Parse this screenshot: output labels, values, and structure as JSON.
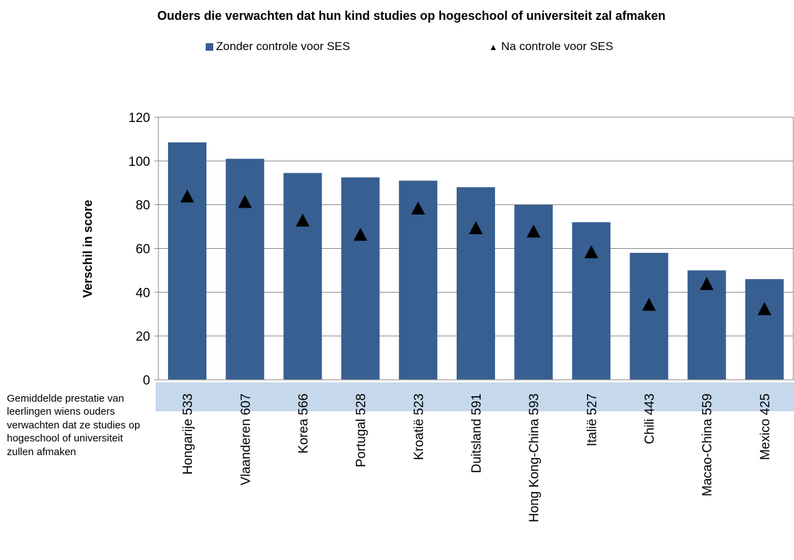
{
  "chart_data": {
    "type": "bar",
    "title": "Ouders die verwachten dat hun kind studies op hogeschool of universiteit zal afmaken",
    "ylabel": "Verschil in score",
    "xlabel": "",
    "ylim": [
      0,
      120
    ],
    "yticks": [
      0,
      20,
      40,
      60,
      80,
      100,
      120
    ],
    "grid": true,
    "legend_position": "top",
    "categories": [
      "Hongarije  533",
      "Vlaanderen  607",
      "Korea  566",
      "Portugal  528",
      "Kroatië  523",
      "Duitsland  591",
      "Hong Kong-China  593",
      "Italië  527",
      "Chili  443",
      "Macao-China  559",
      "Mexico  425"
    ],
    "series": [
      {
        "name": "Zonder controle voor SES",
        "marker": "bar",
        "color": "#375f91",
        "values": [
          108.5,
          101,
          94.5,
          92.5,
          91,
          88,
          80,
          72,
          58,
          50,
          46
        ]
      },
      {
        "name": "Na controle voor SES",
        "marker": "triangle",
        "color": "#000000",
        "values": [
          84,
          81.5,
          73,
          66.5,
          78.5,
          69.5,
          68,
          58.5,
          34.5,
          44,
          32.5
        ]
      }
    ]
  },
  "side_note": "Gemiddelde prestatie van leerlingen wiens ouders verwachten dat ze studies op hogeschool of universiteit zullen afmaken",
  "colors": {
    "bar": "#375f91",
    "band": "#c6d8eb",
    "grid": "#868686",
    "axis": "#868686"
  }
}
